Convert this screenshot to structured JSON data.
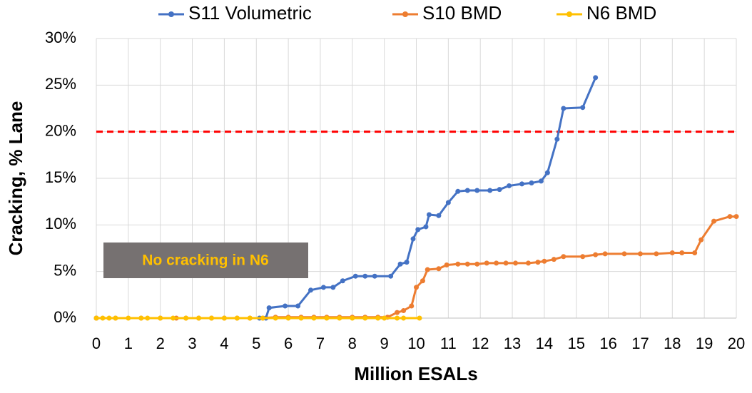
{
  "chart_data": {
    "type": "line",
    "x_label": "Million ESALs",
    "y_label": "Cracking, % Lane",
    "xlim": [
      0,
      20
    ],
    "xticks": [
      0,
      1,
      2,
      3,
      4,
      5,
      6,
      7,
      8,
      9,
      10,
      11,
      12,
      13,
      14,
      15,
      16,
      17,
      18,
      19,
      20
    ],
    "ylim": [
      0,
      30
    ],
    "yticks": [
      {
        "value": 0,
        "label": "0%"
      },
      {
        "value": 5,
        "label": "5%"
      },
      {
        "value": 10,
        "label": "10%"
      },
      {
        "value": 15,
        "label": "15%"
      },
      {
        "value": 20,
        "label": "20%"
      },
      {
        "value": 25,
        "label": "25%"
      },
      {
        "value": 30,
        "label": "30%"
      }
    ],
    "grid": true,
    "legend": "top",
    "reference_line": {
      "value": 20,
      "color": "#ff0000"
    },
    "annotation": "No cracking in N6",
    "series": [
      {
        "name": "S11 Volumetric",
        "color": "#4472c4",
        "x": [
          0,
          5.1,
          5.3,
          5.4,
          5.9,
          6.3,
          6.7,
          7.1,
          7.4,
          7.7,
          8.1,
          8.4,
          8.7,
          9.2,
          9.5,
          9.7,
          9.9,
          10.05,
          10.3,
          10.4,
          10.7,
          11.0,
          11.3,
          11.6,
          11.9,
          12.3,
          12.6,
          12.9,
          13.3,
          13.6,
          13.9,
          14.1,
          14.4,
          14.6,
          15.2,
          15.6
        ],
        "values": [
          0,
          0,
          0,
          1.1,
          1.3,
          1.3,
          3.0,
          3.3,
          3.3,
          4.0,
          4.5,
          4.5,
          4.5,
          4.5,
          5.8,
          6.0,
          8.5,
          9.5,
          9.8,
          11.1,
          11.0,
          12.4,
          13.6,
          13.7,
          13.7,
          13.7,
          13.8,
          14.2,
          14.4,
          14.5,
          14.7,
          15.6,
          19.2,
          22.5,
          22.6,
          25.8
        ]
      },
      {
        "name": "S10 BMD",
        "color": "#ed7d31",
        "x": [
          0,
          0.6,
          1.4,
          2.0,
          2.5,
          2.8,
          3.2,
          3.6,
          4.0,
          4.4,
          4.8,
          5.2,
          5.6,
          6.0,
          6.4,
          6.8,
          7.2,
          7.6,
          8.0,
          8.4,
          8.8,
          9.1,
          9.4,
          9.6,
          9.85,
          10.0,
          10.2,
          10.35,
          10.7,
          10.95,
          11.3,
          11.6,
          11.9,
          12.2,
          12.5,
          12.8,
          13.1,
          13.5,
          13.8,
          14.0,
          14.3,
          14.6,
          15.2,
          15.6,
          15.9,
          16.5,
          17.0,
          17.5,
          18.0,
          18.3,
          18.7,
          18.9,
          19.3,
          19.8,
          20.0
        ],
        "values": [
          0,
          0,
          0,
          0,
          0,
          0,
          0,
          0,
          0,
          0,
          0,
          0,
          0.1,
          0.1,
          0.1,
          0.1,
          0.1,
          0.1,
          0.1,
          0.1,
          0.1,
          0.1,
          0.6,
          0.8,
          1.3,
          3.3,
          4.0,
          5.2,
          5.3,
          5.7,
          5.8,
          5.8,
          5.8,
          5.9,
          5.9,
          5.9,
          5.9,
          5.9,
          6.0,
          6.1,
          6.3,
          6.6,
          6.6,
          6.8,
          6.9,
          6.9,
          6.9,
          6.9,
          7.0,
          7.0,
          7.0,
          8.4,
          10.4,
          10.9,
          10.9
        ]
      },
      {
        "name": "N6 BMD",
        "color": "#ffc000",
        "x": [
          0,
          0.2,
          0.4,
          0.6,
          1.0,
          1.4,
          1.6,
          2.0,
          2.4,
          2.8,
          3.2,
          3.6,
          4.0,
          4.4,
          4.8,
          5.2,
          5.6,
          6.0,
          6.4,
          6.8,
          7.2,
          7.6,
          8.0,
          8.4,
          8.8,
          9.0,
          9.4,
          9.6,
          10.1
        ],
        "values": [
          0,
          0,
          0,
          0,
          0,
          0,
          0,
          0,
          0,
          0,
          0,
          0,
          0,
          0,
          0,
          0,
          0,
          0,
          0,
          0,
          0,
          0,
          0,
          0,
          0,
          0,
          0,
          0,
          0
        ]
      }
    ]
  }
}
